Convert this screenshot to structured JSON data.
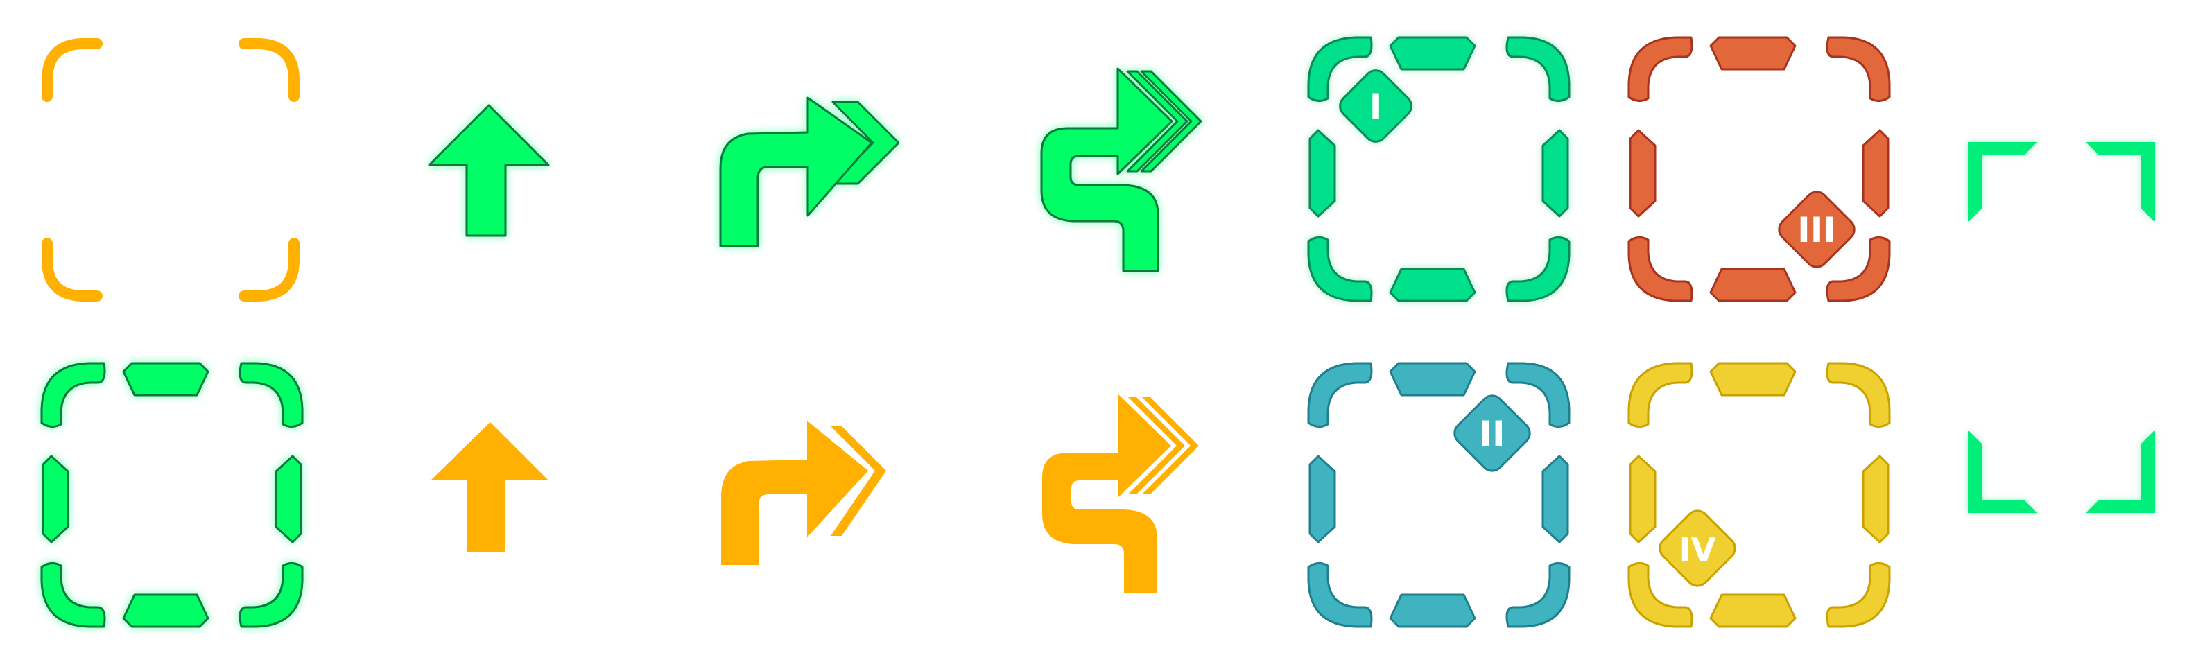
{
  "sheet": {
    "title": "",
    "badges": {
      "one": "I",
      "two": "II",
      "three": "III",
      "four": "IV"
    },
    "colors": {
      "orange": "#FFB000",
      "green": "#00FF66",
      "green_stroke": "#0A7A3A",
      "mint": "#00E08A",
      "mint_stroke": "#0A8A55",
      "red": "#E2673A",
      "red_stroke": "#A8331E",
      "teal": "#3FB3C0",
      "teal_stroke": "#1F7F8C",
      "yellow": "#F0D030",
      "yellow_stroke": "#C9A200",
      "bright_green": "#00EE7A"
    },
    "icons": [
      "corner-frame-orange-icon",
      "arrow-up-green-icon",
      "turn-right-double-chevron-green-icon",
      "s-curve-triple-chevron-green-icon",
      "dashed-frame-badge-one-icon",
      "dashed-frame-badge-three-icon",
      "viewfinder-top-icon",
      "dashed-frame-green-icon",
      "arrow-up-orange-icon",
      "turn-right-double-chevron-orange-icon",
      "s-curve-triple-chevron-orange-icon",
      "dashed-frame-badge-two-icon",
      "dashed-frame-badge-four-icon",
      "viewfinder-bottom-icon"
    ]
  }
}
